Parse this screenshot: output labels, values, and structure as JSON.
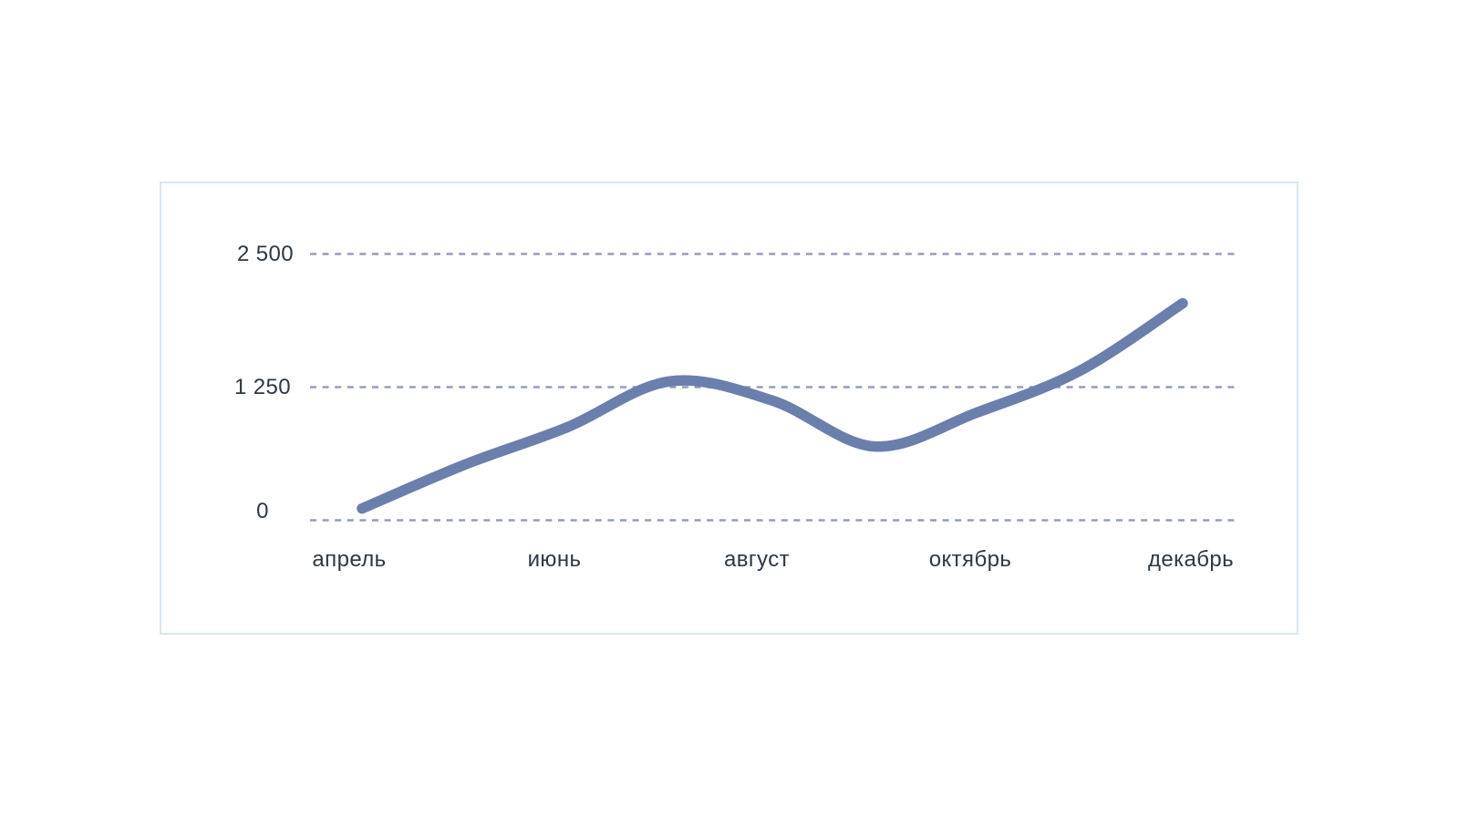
{
  "page": {
    "background": "#ffffff"
  },
  "panel": {
    "background": "#ffffff",
    "border_color": "#d9e5f0"
  },
  "chart_data": {
    "type": "line",
    "title": "",
    "xlabel": "",
    "ylabel": "",
    "legend": "none",
    "grid": "horizontal-dashed",
    "x_tick_labels": [
      "апрель",
      "июнь",
      "август",
      "октябрь",
      "декабрь"
    ],
    "points_per_tick": 2,
    "values": [
      110,
      520,
      870,
      1300,
      1120,
      690,
      1010,
      1400,
      2030
    ],
    "y_tick_labels": [
      "0",
      "1 250",
      "2 500"
    ],
    "y_tick_values": [
      0,
      1250,
      2500
    ],
    "ylim": [
      0,
      3150
    ],
    "line_color": "#6b7fad",
    "grid_color": "#959db5",
    "tick_text_color": "#2c3845"
  }
}
